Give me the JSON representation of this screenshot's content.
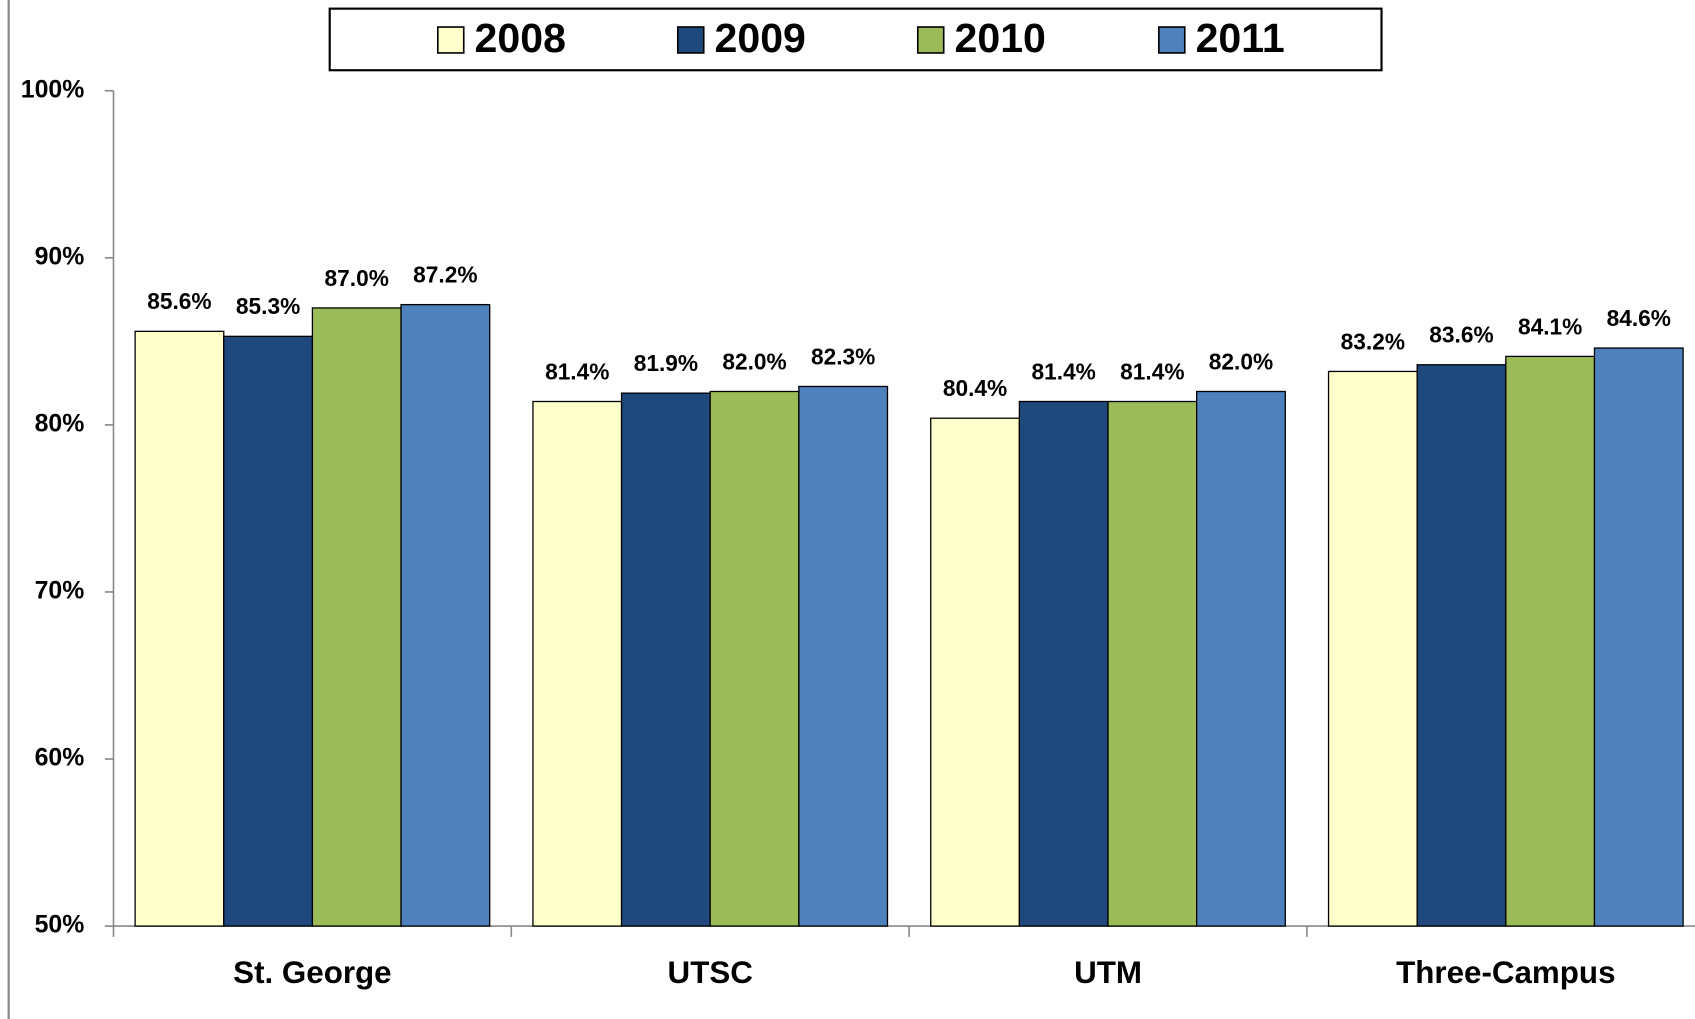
{
  "chart_data": {
    "type": "bar",
    "categories": [
      "St. George",
      "UTSC",
      "UTM",
      "Three-Campus"
    ],
    "series": [
      {
        "name": "2008",
        "color": "#ffffcc",
        "values": [
          85.6,
          81.4,
          80.4,
          83.2
        ],
        "value_labels": [
          "85.6%",
          "81.4%",
          "80.4%",
          "83.2%"
        ]
      },
      {
        "name": "2009",
        "color": "#1f497d",
        "values": [
          85.3,
          81.9,
          81.4,
          83.6
        ],
        "value_labels": [
          "85.3%",
          "81.9%",
          "81.4%",
          "83.6%"
        ]
      },
      {
        "name": "2010",
        "color": "#9bbb59",
        "values": [
          87.0,
          82.0,
          81.4,
          84.1
        ],
        "value_labels": [
          "87.0%",
          "82.0%",
          "81.4%",
          "84.1%"
        ]
      },
      {
        "name": "2011",
        "color": "#4f81bd",
        "values": [
          87.2,
          82.3,
          82.0,
          84.6
        ],
        "value_labels": [
          "87.2%",
          "82.3%",
          "82.0%",
          "84.6%"
        ]
      }
    ],
    "ylim": [
      50,
      100
    ],
    "yticks": [
      {
        "value": 50,
        "label": "50%"
      },
      {
        "value": 60,
        "label": "60%"
      },
      {
        "value": 70,
        "label": "70%"
      },
      {
        "value": 80,
        "label": "80%"
      },
      {
        "value": 90,
        "label": "90%"
      },
      {
        "value": 100,
        "label": "100%"
      }
    ],
    "legend": "top"
  }
}
